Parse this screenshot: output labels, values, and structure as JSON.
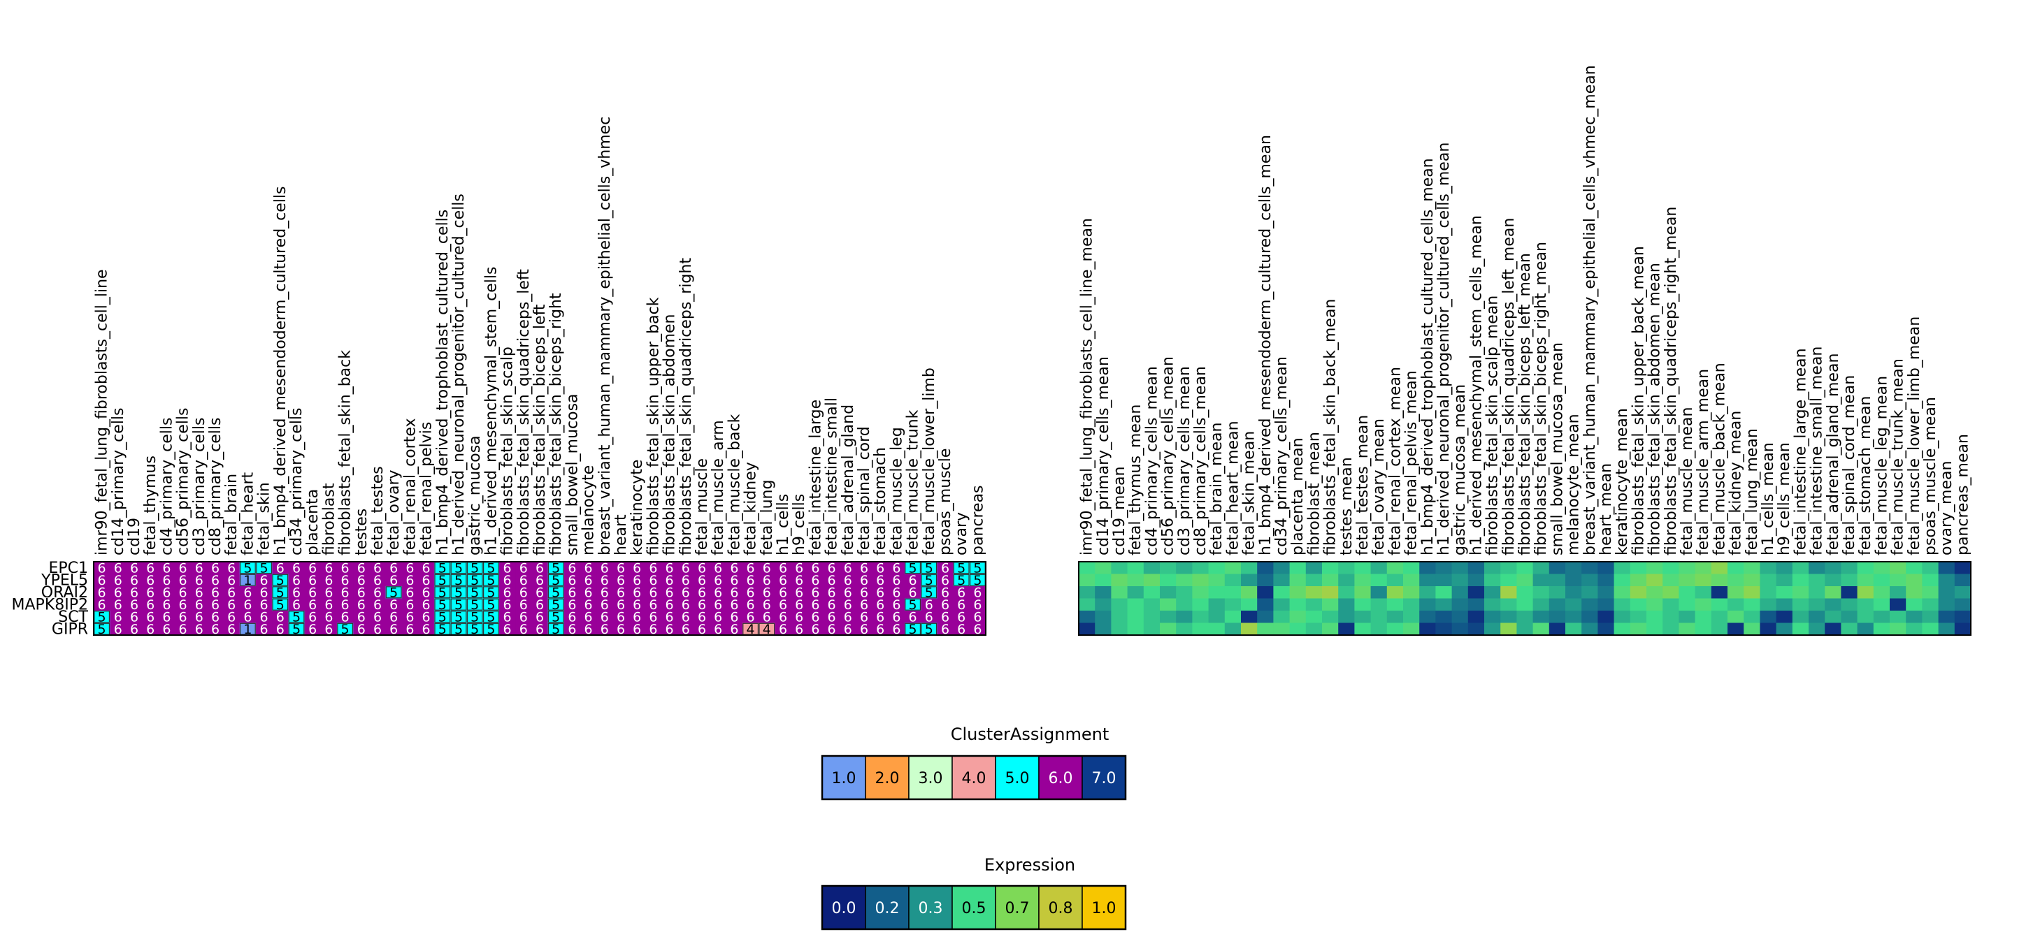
{
  "chart_data": [
    {
      "type": "heatmap",
      "name": "cluster_assignment",
      "rows": [
        "EPC1",
        "YPEL5",
        "ORAI2",
        "MAPK8IP2",
        "SCT",
        "GIPR"
      ],
      "columns": [
        "imr90_fetal_lung_fibroblasts_cell_line",
        "cd14_primary_cells",
        "cd19",
        "fetal_thymus",
        "cd4_primary_cells",
        "cd56_primary_cells",
        "cd3_primary_cells",
        "cd8_primary_cells",
        "fetal_brain",
        "fetal_heart",
        "fetal_skin",
        "h1_bmp4_derived_mesendoderm_cultured_cells",
        "cd34_primary_cells",
        "placenta",
        "fibroblast",
        "fibroblasts_fetal_skin_back",
        "testes",
        "fetal_testes",
        "fetal_ovary",
        "fetal_renal_cortex",
        "fetal_renal_pelvis",
        "h1_bmp4_derived_trophoblast_cultured_cells",
        "h1_derived_neuronal_progenitor_cultured_cells",
        "gastric_mucosa",
        "h1_derived_mesenchymal_stem_cells",
        "fibroblasts_fetal_skin_scalp",
        "fibroblasts_fetal_skin_quadriceps_left",
        "fibroblasts_fetal_skin_biceps_left",
        "fibroblasts_fetal_skin_biceps_right",
        "small_bowel_mucosa",
        "melanocyte",
        "breast_variant_human_mammary_epithelial_cells_vhmec",
        "heart",
        "keratinocyte",
        "fibroblasts_fetal_skin_upper_back",
        "fibroblasts_fetal_skin_abdomen",
        "fibroblasts_fetal_skin_quadriceps_right",
        "fetal_muscle",
        "fetal_muscle_arm",
        "fetal_muscle_back",
        "fetal_kidney",
        "fetal_lung",
        "h1_cells",
        "h9_cells",
        "fetal_intestine_large",
        "fetal_intestine_small",
        "fetal_adrenal_gland",
        "fetal_spinal_cord",
        "fetal_stomach",
        "fetal_muscle_leg",
        "fetal_muscle_trunk",
        "fetal_muscle_lower_limb",
        "psoas_muscle",
        "ovary",
        "pancreas"
      ],
      "values": [
        [
          6,
          6,
          6,
          6,
          6,
          6,
          6,
          6,
          6,
          5,
          5,
          6,
          6,
          6,
          6,
          6,
          6,
          6,
          6,
          6,
          6,
          5,
          5,
          5,
          5,
          6,
          6,
          6,
          5,
          6,
          6,
          6,
          6,
          6,
          6,
          6,
          6,
          6,
          6,
          6,
          6,
          6,
          6,
          6,
          6,
          6,
          6,
          6,
          6,
          6,
          5,
          5,
          6,
          5,
          5
        ],
        [
          6,
          6,
          6,
          6,
          6,
          6,
          6,
          6,
          6,
          1,
          6,
          5,
          6,
          6,
          6,
          6,
          6,
          6,
          6,
          6,
          6,
          5,
          5,
          5,
          5,
          6,
          6,
          6,
          5,
          6,
          6,
          6,
          6,
          6,
          6,
          6,
          6,
          6,
          6,
          6,
          6,
          6,
          6,
          6,
          6,
          6,
          6,
          6,
          6,
          6,
          6,
          5,
          6,
          5,
          5
        ],
        [
          6,
          6,
          6,
          6,
          6,
          6,
          6,
          6,
          6,
          6,
          6,
          5,
          6,
          6,
          6,
          6,
          6,
          6,
          5,
          6,
          6,
          5,
          5,
          5,
          5,
          6,
          6,
          6,
          5,
          6,
          6,
          6,
          6,
          6,
          6,
          6,
          6,
          6,
          6,
          6,
          6,
          6,
          6,
          6,
          6,
          6,
          6,
          6,
          6,
          6,
          6,
          5,
          6,
          6,
          6
        ],
        [
          6,
          6,
          6,
          6,
          6,
          6,
          6,
          6,
          6,
          6,
          6,
          5,
          6,
          6,
          6,
          6,
          6,
          6,
          6,
          6,
          6,
          5,
          5,
          5,
          5,
          6,
          6,
          6,
          5,
          6,
          6,
          6,
          6,
          6,
          6,
          6,
          6,
          6,
          6,
          6,
          6,
          6,
          6,
          6,
          6,
          6,
          6,
          6,
          6,
          6,
          5,
          6,
          6,
          6,
          6
        ],
        [
          5,
          6,
          6,
          6,
          6,
          6,
          6,
          6,
          6,
          6,
          6,
          6,
          5,
          6,
          6,
          6,
          6,
          6,
          6,
          6,
          6,
          5,
          5,
          5,
          5,
          6,
          6,
          6,
          5,
          6,
          6,
          6,
          6,
          6,
          6,
          6,
          6,
          6,
          6,
          6,
          6,
          6,
          6,
          6,
          6,
          6,
          6,
          6,
          6,
          6,
          6,
          6,
          6,
          6,
          6
        ],
        [
          5,
          6,
          6,
          6,
          6,
          6,
          6,
          6,
          6,
          1,
          6,
          6,
          5,
          6,
          6,
          5,
          6,
          6,
          6,
          6,
          6,
          5,
          5,
          5,
          5,
          6,
          6,
          6,
          5,
          6,
          6,
          6,
          6,
          6,
          6,
          6,
          6,
          6,
          6,
          6,
          4,
          4,
          6,
          6,
          6,
          6,
          6,
          6,
          6,
          6,
          5,
          5,
          6,
          6,
          6
        ]
      ]
    },
    {
      "type": "heatmap",
      "name": "expression_mean",
      "rows": [
        "EPC1",
        "YPEL5",
        "ORAI2",
        "MAPK8IP2",
        "SCT",
        "GIPR"
      ],
      "columns": [
        "imr90_fetal_lung_fibroblasts_cell_line_mean",
        "cd14_primary_cells_mean",
        "cd19_mean",
        "fetal_thymus_mean",
        "cd4_primary_cells_mean",
        "cd56_primary_cells_mean",
        "cd3_primary_cells_mean",
        "cd8_primary_cells_mean",
        "fetal_brain_mean",
        "fetal_heart_mean",
        "fetal_skin_mean",
        "h1_bmp4_derived_mesendoderm_cultured_cells_mean",
        "cd34_primary_cells_mean",
        "placenta_mean",
        "fibroblast_mean",
        "fibroblasts_fetal_skin_back_mean",
        "testes_mean",
        "fetal_testes_mean",
        "fetal_ovary_mean",
        "fetal_renal_cortex_mean",
        "fetal_renal_pelvis_mean",
        "h1_bmp4_derived_trophoblast_cultured_cells_mean",
        "h1_derived_neuronal_progenitor_cultured_cells_mean",
        "gastric_mucosa_mean",
        "h1_derived_mesenchymal_stem_cells_mean",
        "fibroblasts_fetal_skin_scalp_mean",
        "fibroblasts_fetal_skin_quadriceps_left_mean",
        "fibroblasts_fetal_skin_biceps_left_mean",
        "fibroblasts_fetal_skin_biceps_right_mean",
        "small_bowel_mucosa_mean",
        "melanocyte_mean",
        "breast_variant_human_mammary_epithelial_cells_vhmec_mean",
        "heart_mean",
        "keratinocyte_mean",
        "fibroblasts_fetal_skin_upper_back_mean",
        "fibroblasts_fetal_skin_abdomen_mean",
        "fibroblasts_fetal_skin_quadriceps_right_mean",
        "fetal_muscle_mean",
        "fetal_muscle_arm_mean",
        "fetal_muscle_back_mean",
        "fetal_kidney_mean",
        "fetal_lung_mean",
        "h1_cells_mean",
        "h9_cells_mean",
        "fetal_intestine_large_mean",
        "fetal_intestine_small_mean",
        "fetal_adrenal_gland_mean",
        "fetal_spinal_cord_mean",
        "fetal_stomach_mean",
        "fetal_muscle_leg_mean",
        "fetal_muscle_trunk_mean",
        "fetal_muscle_lower_limb_mean",
        "psoas_muscle_mean",
        "ovary_mean",
        "pancreas_mean"
      ],
      "values": [
        [
          0.5,
          0.55,
          0.45,
          0.5,
          0.4,
          0.45,
          0.4,
          0.45,
          0.5,
          0.55,
          0.45,
          0.15,
          0.3,
          0.5,
          0.35,
          0.5,
          0.45,
          0.5,
          0.4,
          0.55,
          0.5,
          0.2,
          0.25,
          0.3,
          0.2,
          0.4,
          0.45,
          0.5,
          0.4,
          0.2,
          0.25,
          0.2,
          0.15,
          0.45,
          0.5,
          0.55,
          0.5,
          0.55,
          0.6,
          0.7,
          0.5,
          0.55,
          0.4,
          0.35,
          0.45,
          0.3,
          0.35,
          0.4,
          0.5,
          0.55,
          0.6,
          0.5,
          0.45,
          0.15,
          0.05
        ],
        [
          0.55,
          0.5,
          0.6,
          0.55,
          0.6,
          0.5,
          0.55,
          0.6,
          0.55,
          0.45,
          0.35,
          0.2,
          0.35,
          0.55,
          0.45,
          0.55,
          0.4,
          0.55,
          0.5,
          0.45,
          0.55,
          0.3,
          0.3,
          0.35,
          0.25,
          0.45,
          0.5,
          0.55,
          0.35,
          0.35,
          0.25,
          0.3,
          0.2,
          0.5,
          0.6,
          0.7,
          0.55,
          0.6,
          0.65,
          0.6,
          0.55,
          0.6,
          0.45,
          0.4,
          0.5,
          0.45,
          0.4,
          0.45,
          0.55,
          0.5,
          0.55,
          0.6,
          0.5,
          0.3,
          0.2
        ],
        [
          0.4,
          0.3,
          0.55,
          0.4,
          0.5,
          0.4,
          0.45,
          0.55,
          0.5,
          0.5,
          0.6,
          0.05,
          0.5,
          0.6,
          0.7,
          0.75,
          0.45,
          0.6,
          0.3,
          0.7,
          0.6,
          0.4,
          0.5,
          0.3,
          0.05,
          0.35,
          0.75,
          0.5,
          0.45,
          0.4,
          0.3,
          0.35,
          0.25,
          0.55,
          0.7,
          0.6,
          0.65,
          0.5,
          0.45,
          0.05,
          0.6,
          0.7,
          0.45,
          0.5,
          0.55,
          0.45,
          0.6,
          0.05,
          0.7,
          0.55,
          0.4,
          0.6,
          0.55,
          0.3,
          0.35
        ],
        [
          0.45,
          0.35,
          0.45,
          0.5,
          0.45,
          0.55,
          0.45,
          0.5,
          0.4,
          0.45,
          0.5,
          0.15,
          0.4,
          0.5,
          0.45,
          0.55,
          0.35,
          0.5,
          0.45,
          0.5,
          0.45,
          0.3,
          0.35,
          0.25,
          0.2,
          0.4,
          0.45,
          0.5,
          0.4,
          0.3,
          0.35,
          0.25,
          0.2,
          0.45,
          0.5,
          0.55,
          0.45,
          0.5,
          0.55,
          0.5,
          0.45,
          0.5,
          0.4,
          0.35,
          0.45,
          0.4,
          0.35,
          0.4,
          0.45,
          0.5,
          0.05,
          0.5,
          0.45,
          0.3,
          0.25
        ],
        [
          0.2,
          0.3,
          0.45,
          0.5,
          0.45,
          0.4,
          0.35,
          0.45,
          0.4,
          0.5,
          0.05,
          0.2,
          0.45,
          0.55,
          0.5,
          0.45,
          0.35,
          0.4,
          0.45,
          0.4,
          0.45,
          0.2,
          0.15,
          0.2,
          0.05,
          0.3,
          0.35,
          0.4,
          0.3,
          0.25,
          0.3,
          0.2,
          0.05,
          0.4,
          0.45,
          0.5,
          0.45,
          0.4,
          0.5,
          0.45,
          0.55,
          0.45,
          0.15,
          0.05,
          0.4,
          0.3,
          0.4,
          0.35,
          0.45,
          0.4,
          0.45,
          0.35,
          0.4,
          0.15,
          0.1
        ],
        [
          0.05,
          0.3,
          0.45,
          0.5,
          0.45,
          0.55,
          0.45,
          0.5,
          0.5,
          0.4,
          0.75,
          0.55,
          0.55,
          0.5,
          0.45,
          0.55,
          0.05,
          0.5,
          0.45,
          0.5,
          0.55,
          0.05,
          0.1,
          0.15,
          0.1,
          0.35,
          0.7,
          0.4,
          0.55,
          0.05,
          0.45,
          0.3,
          0.1,
          0.5,
          0.55,
          0.5,
          0.45,
          0.55,
          0.5,
          0.45,
          0.05,
          0.55,
          0.05,
          0.3,
          0.5,
          0.35,
          0.05,
          0.45,
          0.3,
          0.5,
          0.55,
          0.45,
          0.5,
          0.3,
          0.05
        ]
      ]
    },
    {
      "type": "legend",
      "name": "cluster_legend",
      "title": "ClusterAssignment",
      "labels": [
        "1.0",
        "2.0",
        "3.0",
        "4.0",
        "5.0",
        "6.0",
        "7.0"
      ],
      "colors": [
        "#6f9cf2",
        "#ff9f43",
        "#ccffcc",
        "#f4a0a0",
        "#00ffff",
        "#990099",
        "#0b3b8c"
      ],
      "text_colors": [
        "#000000",
        "#000000",
        "#000000",
        "#000000",
        "#000000",
        "#ffffff",
        "#ffffff"
      ]
    },
    {
      "type": "legend",
      "name": "expression_legend",
      "title": "Expression",
      "labels": [
        "0.0",
        "0.2",
        "0.3",
        "0.5",
        "0.7",
        "0.8",
        "1.0"
      ],
      "colors": [
        "#0b1f7a",
        "#125e8a",
        "#1f948c",
        "#3ddc8a",
        "#7ed957",
        "#c4c83a",
        "#f7c600"
      ],
      "text_colors": [
        "#ffffff",
        "#ffffff",
        "#ffffff",
        "#000000",
        "#000000",
        "#000000",
        "#000000"
      ]
    }
  ],
  "palette": {
    "cluster": {
      "1": "#6f9cf2",
      "2": "#ff9f43",
      "3": "#ccffcc",
      "4": "#f4a0a0",
      "5": "#00ffff",
      "6": "#990099",
      "7": "#0b3b8c"
    },
    "expression_stops": [
      "#0b1f7a",
      "#125e8a",
      "#1f948c",
      "#3ddc8a",
      "#7ed957",
      "#c4c83a",
      "#f7c600"
    ]
  }
}
